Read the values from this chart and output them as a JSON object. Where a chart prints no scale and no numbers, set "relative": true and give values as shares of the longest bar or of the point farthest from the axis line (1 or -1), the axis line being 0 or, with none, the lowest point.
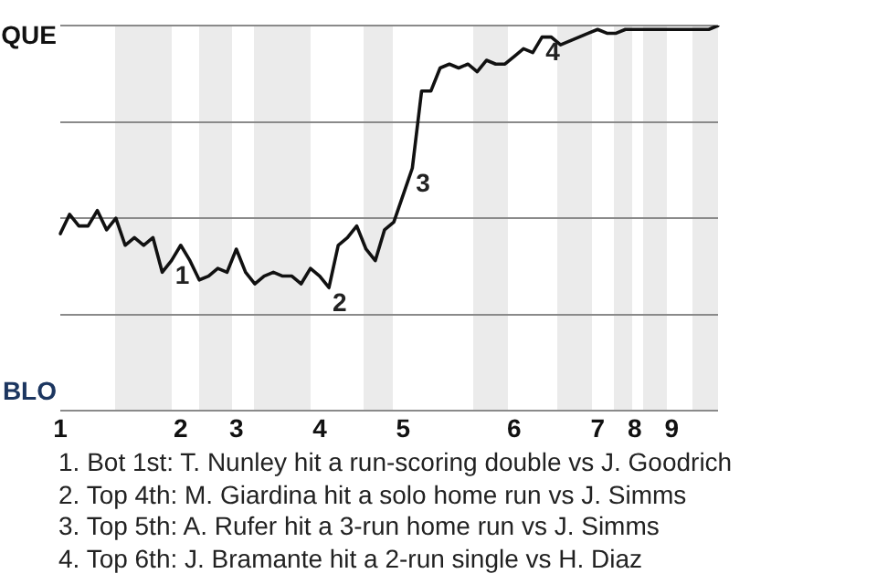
{
  "chart_data": {
    "type": "line",
    "relative": true,
    "categories": [
      "1",
      null,
      null,
      null,
      null,
      null,
      null,
      null,
      null,
      null,
      null,
      null,
      null,
      "2",
      null,
      null,
      null,
      null,
      null,
      "3",
      null,
      null,
      null,
      null,
      null,
      null,
      null,
      null,
      "4",
      null,
      null,
      null,
      null,
      null,
      null,
      null,
      null,
      "5",
      null,
      null,
      null,
      null,
      null,
      null,
      null,
      null,
      null,
      null,
      null,
      "6",
      null,
      null,
      null,
      null,
      null,
      null,
      null,
      null,
      "7",
      null,
      null,
      null,
      "8",
      null,
      null,
      null,
      "9",
      null,
      null,
      null,
      null,
      null
    ],
    "series": [
      {
        "color": "#111111",
        "values": [
          0.46,
          0.51,
          0.48,
          0.48,
          0.52,
          0.47,
          0.5,
          0.43,
          0.45,
          0.43,
          0.45,
          0.36,
          0.39,
          0.43,
          0.39,
          0.34,
          0.35,
          0.37,
          0.36,
          0.42,
          0.36,
          0.33,
          0.35,
          0.36,
          0.35,
          0.35,
          0.33,
          0.37,
          0.35,
          0.32,
          0.43,
          0.45,
          0.48,
          0.42,
          0.39,
          0.47,
          0.49,
          0.56,
          0.63,
          0.83,
          0.83,
          0.89,
          0.9,
          0.89,
          0.9,
          0.88,
          0.91,
          0.9,
          0.9,
          0.92,
          0.94,
          0.93,
          0.97,
          0.97,
          0.95,
          0.96,
          0.97,
          0.98,
          0.99,
          0.98,
          0.98,
          0.99,
          0.99,
          0.99,
          0.99,
          0.99,
          0.99,
          0.99,
          0.99,
          0.99,
          0.99,
          1
        ]
      }
    ],
    "grid": "y",
    "marker": "none",
    "annotations": [
      "QUE",
      "BLO",
      "1",
      "2",
      "3",
      "4",
      "1. Bot 1st: T. Nunley hit a run-scoring double vs J. Goodrich",
      "2. Top 4th: M. Giardina hit a solo home run vs J. Simms",
      "3. Top 5th: A. Rufer hit a 3-run home run vs J. Simms",
      "4. Top 6th: J. Bramante hit a 2-run single vs H. Diaz"
    ]
  }
}
